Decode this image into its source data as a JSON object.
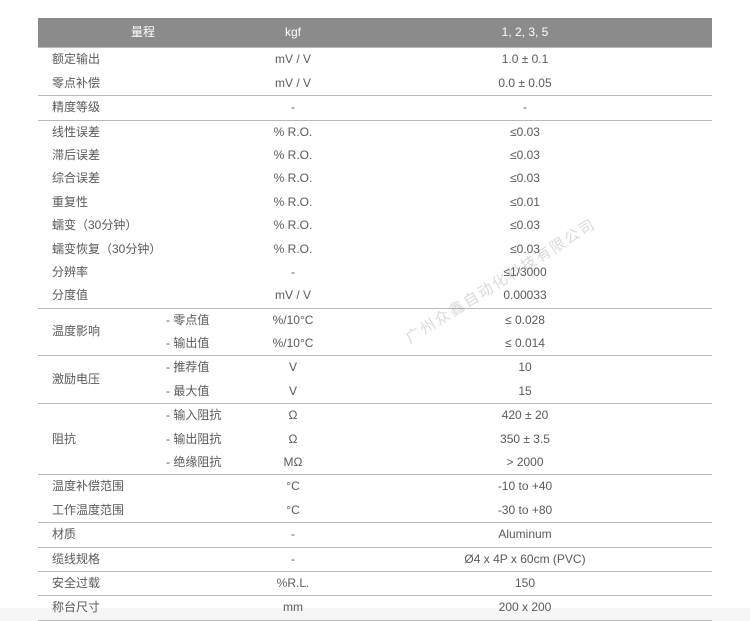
{
  "header": {
    "c1": "量程",
    "c3": "kgf",
    "c4": "1, 2, 3, 5"
  },
  "rows": [
    {
      "label": "额定输出",
      "unit": "mV / V",
      "val": "1.0 ± 0.1",
      "bottom": false
    },
    {
      "label": "零点补偿",
      "unit": "mV / V",
      "val": "0.0 ± 0.05",
      "bottom": true
    },
    {
      "label": "精度等级",
      "unit": "-",
      "val": "-",
      "bottom": true
    },
    {
      "label": "线性误差",
      "unit": "% R.O.",
      "val": "≤0.03",
      "bottom": false
    },
    {
      "label": "滞后误差",
      "unit": "% R.O.",
      "val": "≤0.03",
      "bottom": false
    },
    {
      "label": "综合误差",
      "unit": "% R.O.",
      "val": "≤0.03",
      "bottom": false
    },
    {
      "label": "重复性",
      "unit": "% R.O.",
      "val": "≤0.01",
      "bottom": false
    },
    {
      "label": "蠕变（30分钟）",
      "unit": "% R.O.",
      "val": "≤0.03",
      "bottom": false
    },
    {
      "label": "蠕变恢复（30分钟）",
      "unit": "% R.O.",
      "val": "≤0.03",
      "bottom": false
    },
    {
      "label": "分辨率",
      "unit": "-",
      "val": "≤1/3000",
      "bottom": false
    },
    {
      "label": "分度值",
      "unit": "mV / V",
      "val": "0.00033",
      "bottom": true
    }
  ],
  "groups": [
    {
      "label": "温度影响",
      "subs": [
        {
          "sub": "- 零点值",
          "unit": "%/10°C",
          "val": "≤ 0.028"
        },
        {
          "sub": "- 输出值",
          "unit": "%/10°C",
          "val": "≤ 0.014"
        }
      ]
    },
    {
      "label": "激励电压",
      "subs": [
        {
          "sub": "- 推荐值",
          "unit": "V",
          "val": "10"
        },
        {
          "sub": "- 最大值",
          "unit": "V",
          "val": "15"
        }
      ]
    },
    {
      "label": "阻抗",
      "subs": [
        {
          "sub": "- 输入阻抗",
          "unit": "Ω",
          "val": "420 ± 20"
        },
        {
          "sub": "- 输出阻抗",
          "unit": "Ω",
          "val": "350 ± 3.5"
        },
        {
          "sub": "- 绝缘阻抗",
          "unit": "MΩ",
          "val": "> 2000"
        }
      ]
    }
  ],
  "rows2": [
    {
      "label": "温度补偿范围",
      "unit": "°C",
      "val": "-10 to +40",
      "bottom": false
    },
    {
      "label": "工作温度范围",
      "unit": "°C",
      "val": "-30 to +80",
      "bottom": true
    },
    {
      "label": "材质",
      "unit": "-",
      "val": "Aluminum",
      "bottom": true
    },
    {
      "label": "缆线规格",
      "unit": "-",
      "val": "Ø4 x 4P x 60cm (PVC)",
      "bottom": true
    },
    {
      "label": "安全过载",
      "unit": "%R.L.",
      "val": "150",
      "bottom": true
    },
    {
      "label": "称台尺寸",
      "unit": "mm",
      "val": "200 x 200",
      "bottom": true
    }
  ],
  "watermark": "广州众鑫自动化科技有限公司",
  "colors": {
    "header_bg": "#8b8b8b",
    "header_fg": "#ffffff",
    "text": "#5a5a5a",
    "rule": "#b9b9b9",
    "page_bg": "#ffffff"
  }
}
